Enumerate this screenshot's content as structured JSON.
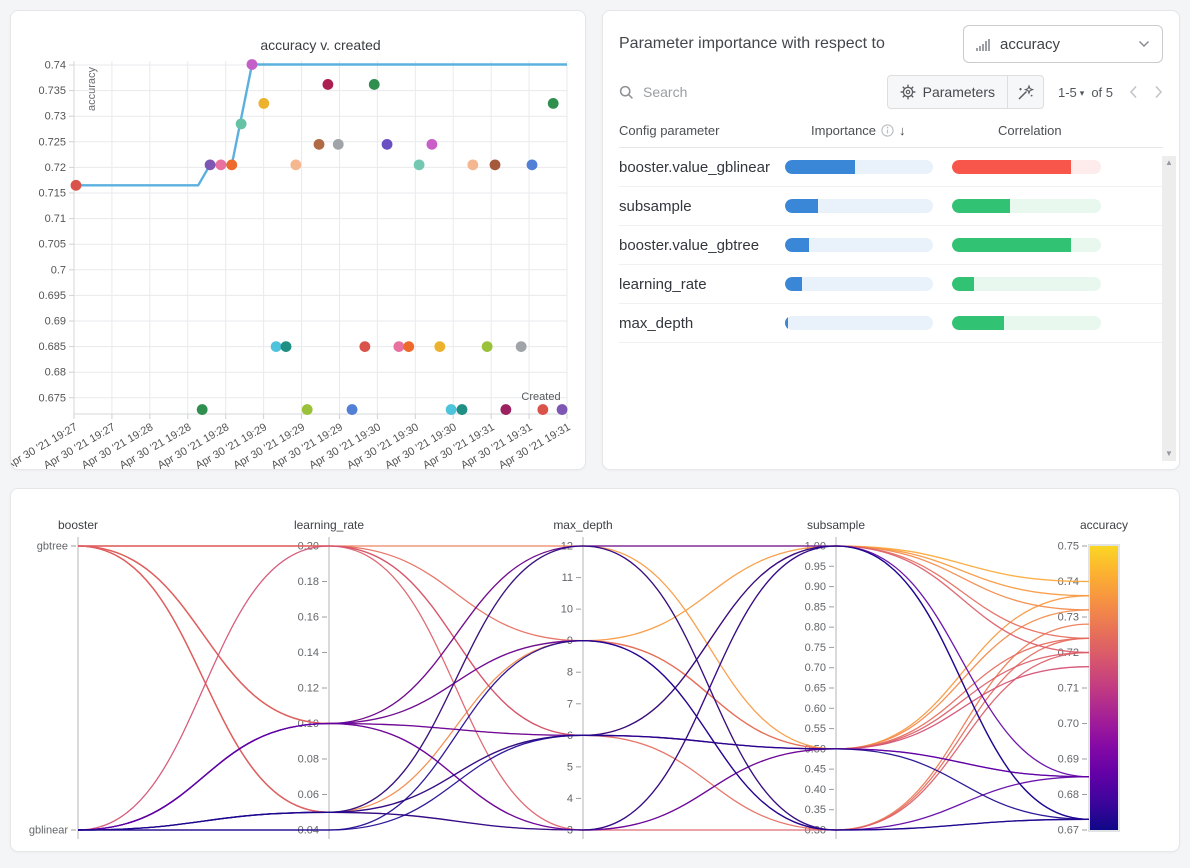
{
  "icons": {
    "sort": "↓",
    "scroll_up": "▲",
    "scroll_down": "▼",
    "caret": "▾"
  },
  "importance_panel": {
    "title": "Parameter importance with respect to",
    "metric": "accuracy",
    "search_placeholder": "Search",
    "parameters_label": "Parameters",
    "pagination": {
      "range": "1-5",
      "of": "of 5"
    },
    "columns": [
      "Config parameter",
      "Importance",
      "Correlation"
    ],
    "rows": [
      {
        "name": "booster.value_gblinear",
        "importance": 0.47,
        "correlation": 0.8,
        "correlation_sign": "negative"
      },
      {
        "name": "subsample",
        "importance": 0.22,
        "correlation": 0.39,
        "correlation_sign": "positive"
      },
      {
        "name": "booster.value_gbtree",
        "importance": 0.16,
        "correlation": 0.8,
        "correlation_sign": "positive"
      },
      {
        "name": "learning_rate",
        "importance": 0.115,
        "correlation": 0.15,
        "correlation_sign": "positive"
      },
      {
        "name": "max_depth",
        "importance": 0.02,
        "correlation": 0.35,
        "correlation_sign": "positive"
      }
    ],
    "colors": {
      "importance_fill": "#3a87d8",
      "importance_track": "#e9f1fa",
      "positive": "#31c373",
      "positive_track": "#e9f8ef",
      "negative": "#f8564b",
      "negative_track": "#fdeceb"
    }
  },
  "chart_data": [
    {
      "type": "scatter",
      "title": "accuracy v. created",
      "xlabel": "Created",
      "ylabel": "accuracy",
      "x_tick_labels": [
        "Apr 30 '21 19:27",
        "Apr 30 '21 19:27",
        "Apr 30 '21 19:28",
        "Apr 30 '21 19:28",
        "Apr 30 '21 19:28",
        "Apr 30 '21 19:29",
        "Apr 30 '21 19:29",
        "Apr 30 '21 19:29",
        "Apr 30 '21 19:30",
        "Apr 30 '21 19:30",
        "Apr 30 '21 19:30",
        "Apr 30 '21 19:31",
        "Apr 30 '21 19:31",
        "Apr 30 '21 19:31"
      ],
      "y_ticks": [
        0.675,
        0.68,
        0.685,
        0.69,
        0.695,
        0.7,
        0.705,
        0.71,
        0.715,
        0.72,
        0.725,
        0.73,
        0.735,
        0.74
      ],
      "ylim": [
        0.6718,
        0.7415
      ],
      "line": {
        "color": "#5bb0de",
        "points": [
          [
            0.004,
            0.7165
          ],
          [
            0.252,
            0.7165
          ],
          [
            0.276,
            0.7205
          ],
          [
            0.32,
            0.7205
          ],
          [
            0.361,
            0.7401
          ],
          [
            1.0,
            0.7401
          ]
        ]
      },
      "points": [
        [
          0.004,
          0.7165,
          "#d9534a"
        ],
        [
          0.276,
          0.7205,
          "#7e57b5"
        ],
        [
          0.298,
          0.7205,
          "#e8719f"
        ],
        [
          0.32,
          0.7205,
          "#ed6a2c"
        ],
        [
          0.339,
          0.7285,
          "#66c2a5"
        ],
        [
          0.361,
          0.7401,
          "#c45ec8"
        ],
        [
          0.385,
          0.7325,
          "#ecb22e"
        ],
        [
          0.45,
          0.7205,
          "#f5b78f"
        ],
        [
          0.497,
          0.7245,
          "#b06a45"
        ],
        [
          0.515,
          0.7362,
          "#ab2050"
        ],
        [
          0.536,
          0.7245,
          "#a0a4a8"
        ],
        [
          0.609,
          0.7362,
          "#2f8f4e"
        ],
        [
          0.635,
          0.7245,
          "#6a4fc2"
        ],
        [
          0.7,
          0.7205,
          "#74c7b0"
        ],
        [
          0.726,
          0.7245,
          "#ca5ec8"
        ],
        [
          0.809,
          0.7205,
          "#f5b78f"
        ],
        [
          0.854,
          0.7205,
          "#a3593a"
        ],
        [
          0.929,
          0.7205,
          "#5280d6"
        ],
        [
          0.972,
          0.7325,
          "#2f8f4e"
        ],
        [
          0.41,
          0.685,
          "#4ec3dc"
        ],
        [
          0.43,
          0.685,
          "#1f8f83"
        ],
        [
          0.59,
          0.685,
          "#d9534a"
        ],
        [
          0.659,
          0.685,
          "#e8719f"
        ],
        [
          0.679,
          0.685,
          "#ed6a2c"
        ],
        [
          0.742,
          0.685,
          "#ecb22e"
        ],
        [
          0.838,
          0.685,
          "#9ac13a"
        ],
        [
          0.907,
          0.685,
          "#a0a4a8"
        ],
        [
          0.26,
          0.6727,
          "#2f8f4e"
        ],
        [
          0.473,
          0.6727,
          "#9ac13a"
        ],
        [
          0.564,
          0.6727,
          "#5280d6"
        ],
        [
          0.765,
          0.6727,
          "#4ec3dc"
        ],
        [
          0.787,
          0.6727,
          "#1f8f83"
        ],
        [
          0.876,
          0.6727,
          "#9c2160"
        ],
        [
          0.951,
          0.6727,
          "#d9534a"
        ],
        [
          0.99,
          0.6727,
          "#7e57b5"
        ]
      ]
    },
    {
      "type": "parallel-coordinates",
      "colormap": "plasma",
      "axes": [
        {
          "name": "booster",
          "kind": "category",
          "categories": [
            "gbtree",
            "gblinear"
          ]
        },
        {
          "name": "learning_rate",
          "kind": "numeric",
          "range": [
            0.04,
            0.2
          ],
          "ticks": [
            0.2,
            0.18,
            0.16,
            0.14,
            0.12,
            0.1,
            0.08,
            0.06,
            0.04
          ],
          "decimals": 2
        },
        {
          "name": "max_depth",
          "kind": "numeric",
          "range": [
            3,
            12
          ],
          "ticks": [
            12,
            11,
            10,
            9,
            8,
            7,
            6,
            5,
            4,
            3
          ],
          "decimals": 0
        },
        {
          "name": "subsample",
          "kind": "numeric",
          "range": [
            0.3,
            1.0
          ],
          "ticks": [
            1.0,
            0.95,
            0.9,
            0.85,
            0.8,
            0.75,
            0.7,
            0.65,
            0.6,
            0.55,
            0.5,
            0.45,
            0.4,
            0.35,
            0.3
          ],
          "decimals": 2
        },
        {
          "name": "accuracy",
          "kind": "colorbar",
          "range": [
            0.67,
            0.75
          ],
          "ticks": [
            0.75,
            0.74,
            0.73,
            0.72,
            0.71,
            0.7,
            0.69,
            0.68,
            0.67
          ],
          "decimals": 2
        }
      ],
      "runs": [
        {
          "booster": "gbtree",
          "learning_rate": 0.2,
          "max_depth": 12,
          "subsample": 0.3,
          "accuracy": 0.728
        },
        {
          "booster": "gbtree",
          "learning_rate": 0.1,
          "max_depth": 12,
          "subsample": 1.0,
          "accuracy": 0.74
        },
        {
          "booster": "gbtree",
          "learning_rate": 0.1,
          "max_depth": 9,
          "subsample": 1.0,
          "accuracy": 0.736
        },
        {
          "booster": "gbtree",
          "learning_rate": 0.05,
          "max_depth": 12,
          "subsample": 0.5,
          "accuracy": 0.736
        },
        {
          "booster": "gbtree",
          "learning_rate": 0.2,
          "max_depth": 6,
          "subsample": 1.0,
          "accuracy": 0.732
        },
        {
          "booster": "gbtree",
          "learning_rate": 0.05,
          "max_depth": 9,
          "subsample": 0.5,
          "accuracy": 0.732
        },
        {
          "booster": "gbtree",
          "learning_rate": 0.2,
          "max_depth": 9,
          "subsample": 0.5,
          "accuracy": 0.724
        },
        {
          "booster": "gbtree",
          "learning_rate": 0.1,
          "max_depth": 6,
          "subsample": 0.3,
          "accuracy": 0.724
        },
        {
          "booster": "gbtree",
          "learning_rate": 0.05,
          "max_depth": 6,
          "subsample": 1.0,
          "accuracy": 0.724
        },
        {
          "booster": "gbtree",
          "learning_rate": 0.2,
          "max_depth": 3,
          "subsample": 0.3,
          "accuracy": 0.72
        },
        {
          "booster": "gbtree",
          "learning_rate": 0.1,
          "max_depth": 3,
          "subsample": 0.5,
          "accuracy": 0.72
        },
        {
          "booster": "gbtree",
          "learning_rate": 0.05,
          "max_depth": 3,
          "subsample": 1.0,
          "accuracy": 0.72
        },
        {
          "booster": "gblinear",
          "learning_rate": 0.2,
          "max_depth": 6,
          "subsample": 0.5,
          "accuracy": 0.716
        },
        {
          "booster": "gblinear",
          "learning_rate": 0.1,
          "max_depth": 6,
          "subsample": 0.5,
          "accuracy": 0.685
        },
        {
          "booster": "gblinear",
          "learning_rate": 0.1,
          "max_depth": 9,
          "subsample": 0.3,
          "accuracy": 0.685
        },
        {
          "booster": "gblinear",
          "learning_rate": 0.1,
          "max_depth": 12,
          "subsample": 1.0,
          "accuracy": 0.685
        },
        {
          "booster": "gblinear",
          "learning_rate": 0.1,
          "max_depth": 3,
          "subsample": 0.5,
          "accuracy": 0.685
        },
        {
          "booster": "gblinear",
          "learning_rate": 0.05,
          "max_depth": 3,
          "subsample": 1.0,
          "accuracy": 0.673
        },
        {
          "booster": "gblinear",
          "learning_rate": 0.05,
          "max_depth": 6,
          "subsample": 0.5,
          "accuracy": 0.673
        },
        {
          "booster": "gblinear",
          "learning_rate": 0.04,
          "max_depth": 9,
          "subsample": 0.3,
          "accuracy": 0.673
        },
        {
          "booster": "gblinear",
          "learning_rate": 0.05,
          "max_depth": 12,
          "subsample": 0.3,
          "accuracy": 0.673
        },
        {
          "booster": "gblinear",
          "learning_rate": 0.04,
          "max_depth": 6,
          "subsample": 1.0,
          "accuracy": 0.673
        }
      ]
    }
  ]
}
